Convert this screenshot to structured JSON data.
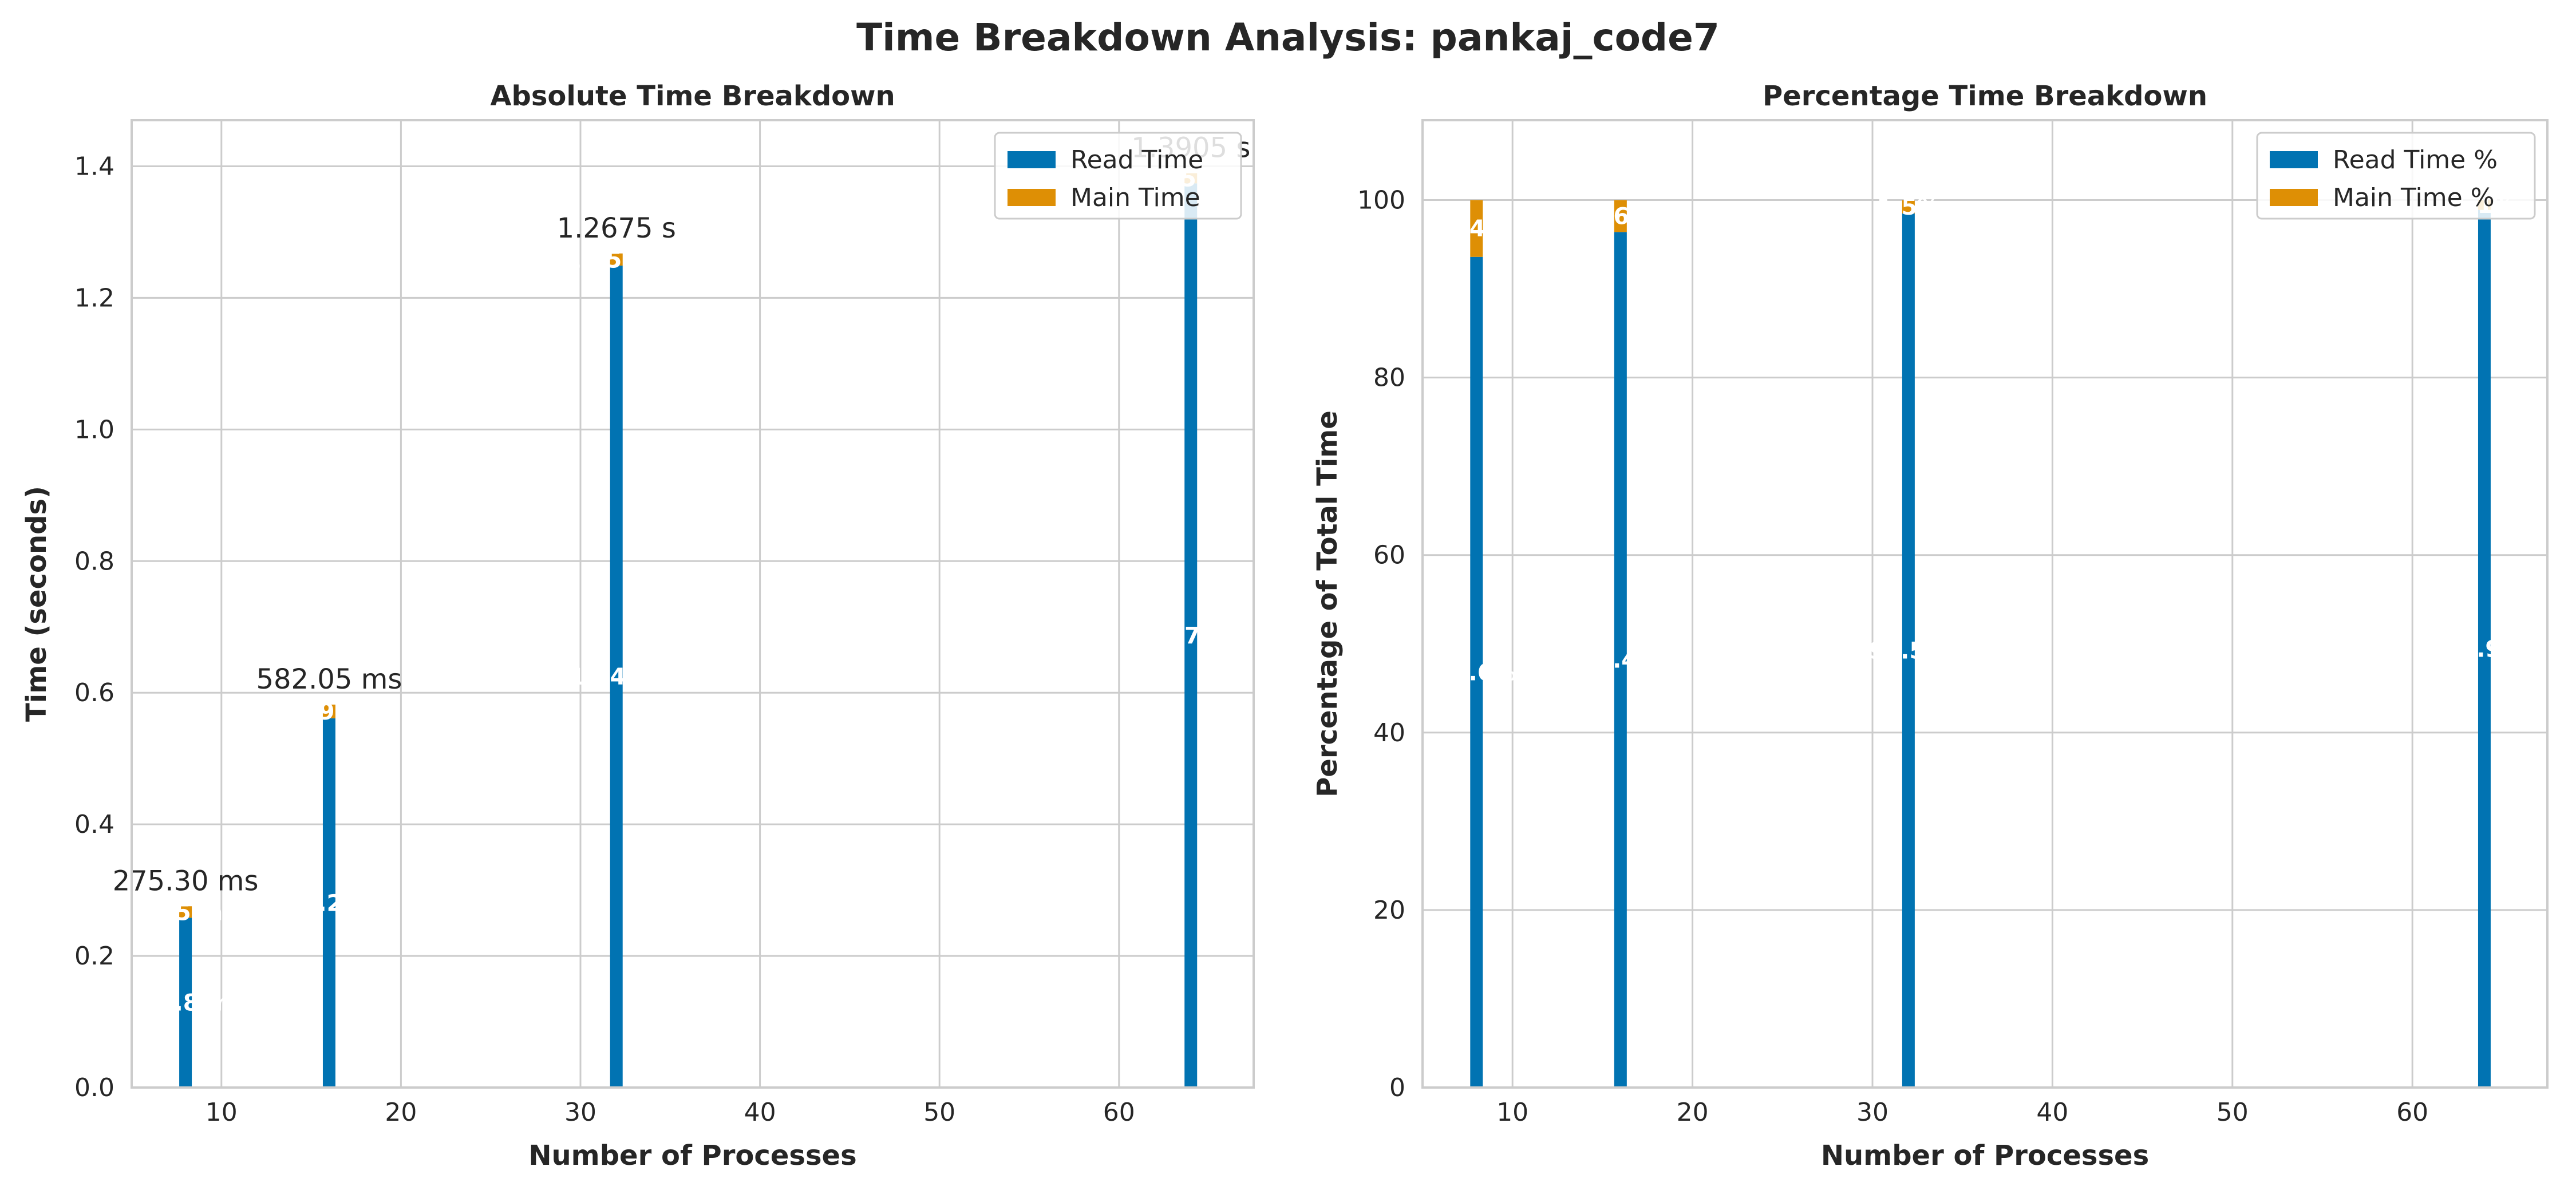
{
  "title": "Time Breakdown Analysis: pankaj_code7",
  "chart_data": [
    {
      "type": "bar",
      "stacked": true,
      "title": "Absolute Time Breakdown",
      "xlabel": "Number of Processes",
      "ylabel": "Time (seconds)",
      "x": [
        8,
        16,
        32,
        64
      ],
      "xlim": [
        5,
        67.5
      ],
      "ylim": [
        0,
        1.47
      ],
      "xticks": [
        "10",
        "20",
        "30",
        "40",
        "50",
        "60"
      ],
      "yticks": [
        "0.0",
        "0.2",
        "0.4",
        "0.6",
        "0.8",
        "1.0",
        "1.2",
        "1.4"
      ],
      "series": [
        {
          "name": "Read Time",
          "color": "#0173b2",
          "values": [
            0.258,
            0.561,
            1.249,
            1.374
          ],
          "labels": [
            "257.8 ms",
            "561.2 ms",
            "1.249 s",
            "1.374 s"
          ]
        },
        {
          "name": "Main Time",
          "color": "#de8f05",
          "values": [
            0.0175,
            0.0209,
            0.0185,
            0.0155
          ],
          "labels": [
            "17.5 ms",
            "20.9 ms",
            "18.5 ms",
            "15.5 ms"
          ]
        }
      ],
      "totals": [
        "275.30 ms",
        "582.05 ms",
        "1.2675 s",
        "1.3905 s"
      ],
      "grid": true,
      "legend": "top-right"
    },
    {
      "type": "bar",
      "stacked": true,
      "title": "Percentage Time Breakdown",
      "xlabel": "Number of Processes",
      "ylabel": "Percentage of Total Time",
      "x": [
        8,
        16,
        32,
        64
      ],
      "xlim": [
        5,
        67.5
      ],
      "ylim": [
        0,
        109
      ],
      "xticks": [
        "10",
        "20",
        "30",
        "40",
        "50",
        "60"
      ],
      "yticks": [
        "0",
        "20",
        "40",
        "60",
        "80",
        "100"
      ],
      "series": [
        {
          "name": "Read Time %",
          "color": "#0173b2",
          "values": [
            93.6,
            96.4,
            98.5,
            98.9
          ],
          "labels": [
            "93.6%",
            "96.4%",
            "98.5%",
            "98.9%"
          ]
        },
        {
          "name": "Main Time %",
          "color": "#de8f05",
          "values": [
            6.4,
            3.6,
            1.5,
            1.1
          ],
          "labels": [
            "6.4%",
            "3.6%",
            "1.5%",
            "1.1%"
          ]
        }
      ],
      "grid": true,
      "legend": "top-right"
    }
  ]
}
